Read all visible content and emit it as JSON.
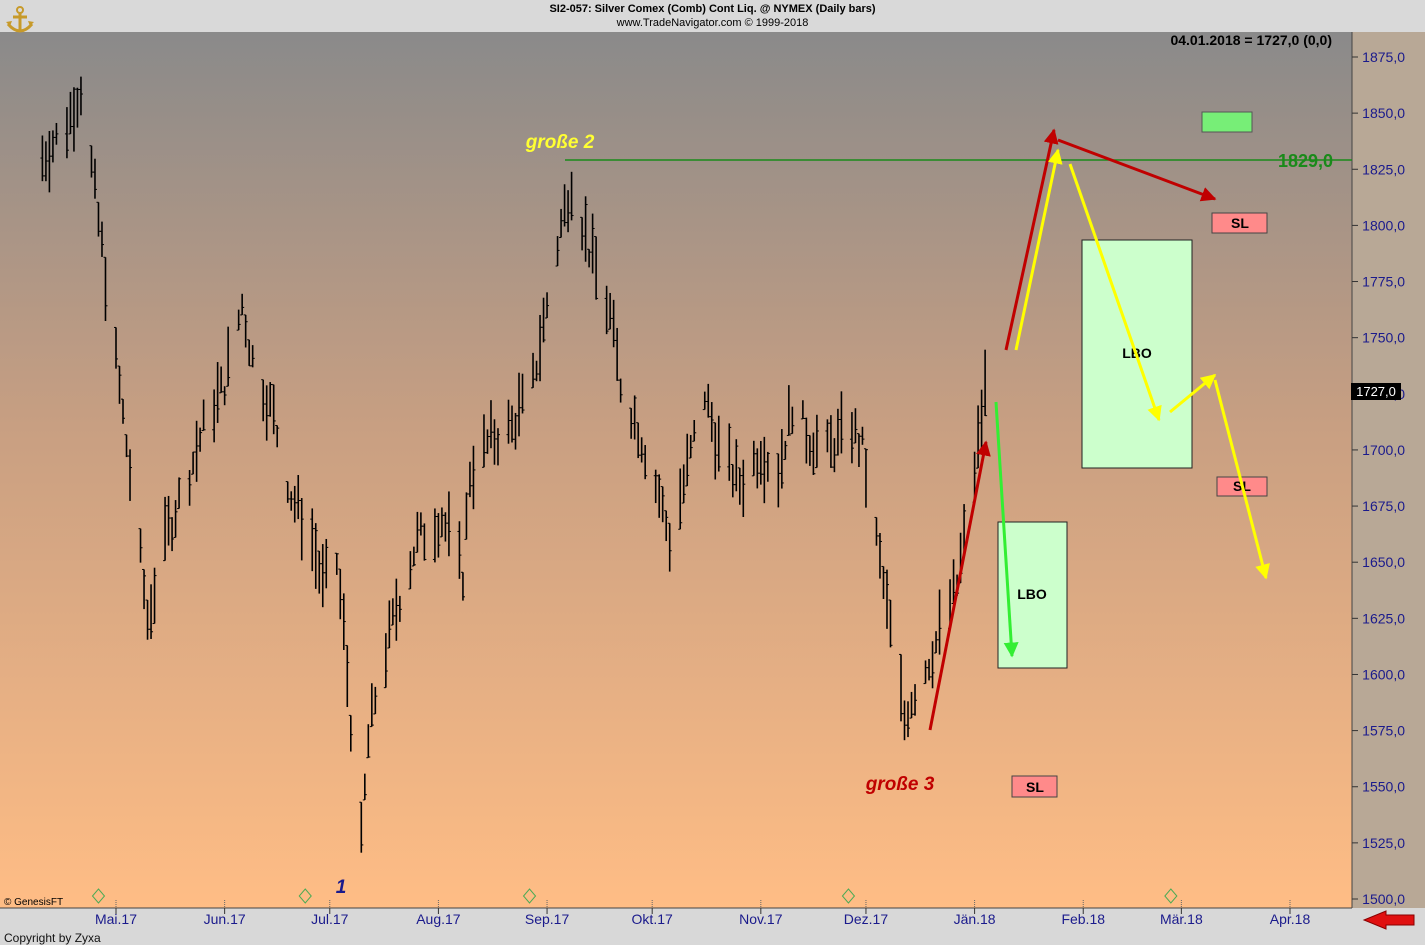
{
  "header": {
    "title": "SI2-057:  Silver Comex (Comb) Cont Liq. @ NYMEX  (Daily bars)",
    "subtitle": "www.TradeNavigator.com © 1999-2018"
  },
  "readout": "04.01.2018 = 1727,0 (0,0)",
  "price_badge": "1727,0",
  "footer": {
    "provider": "© GenesisFT",
    "copyright": "Copyright by Zyxa"
  },
  "colors": {
    "bg_top": "#8c8c8c",
    "bg_bottom": "#fdbe87",
    "bars": "#000000",
    "red_arrow": "#c00000",
    "yellow_arrow": "#ffff00",
    "green_arrow": "#33ee33",
    "level_line": "#1a8a1a",
    "lbo_box": "#ccffcc",
    "sl_box": "#ff8a8a",
    "axis_text": "#1a1a8c"
  },
  "chart_data": {
    "type": "ohlc",
    "title": "SI2-057:  Silver Comex (Comb) Cont Liq. @ NYMEX  (Daily bars)",
    "xlabel": "",
    "ylabel": "",
    "ylim": [
      1500,
      1875
    ],
    "yticks": [
      "1875,0",
      "1850,0",
      "1825,0",
      "1800,0",
      "1775,0",
      "1750,0",
      "1725,0",
      "1700,0",
      "1675,0",
      "1650,0",
      "1625,0",
      "1600,0",
      "1575,0",
      "1550,0",
      "1525,0",
      "1500,0"
    ],
    "ytick_values": [
      1875,
      1850,
      1825,
      1800,
      1775,
      1750,
      1725,
      1700,
      1675,
      1650,
      1625,
      1600,
      1575,
      1550,
      1525,
      1500
    ],
    "xticks": [
      "Mai.17",
      "Jun.17",
      "Jul.17",
      "Aug.17",
      "Sep.17",
      "Okt.17",
      "Nov.17",
      "Dez.17",
      "Jän.18",
      "Feb.18",
      "Mär.18",
      "Apr.18"
    ],
    "price_path": [
      [
        "2017-04-10",
        1830
      ],
      [
        "2017-04-17",
        1845
      ],
      [
        "2017-04-21",
        1862
      ],
      [
        "2017-04-27",
        1790
      ],
      [
        "2017-05-05",
        1690
      ],
      [
        "2017-05-10",
        1625
      ],
      [
        "2017-05-16",
        1665
      ],
      [
        "2017-05-22",
        1690
      ],
      [
        "2017-05-26",
        1710
      ],
      [
        "2017-06-01",
        1730
      ],
      [
        "2017-06-06",
        1765
      ],
      [
        "2017-06-09",
        1740
      ],
      [
        "2017-06-15",
        1715
      ],
      [
        "2017-06-20",
        1680
      ],
      [
        "2017-06-26",
        1660
      ],
      [
        "2017-06-29",
        1640
      ],
      [
        "2017-07-03",
        1650
      ],
      [
        "2017-07-05",
        1620
      ],
      [
        "2017-07-07",
        1580
      ],
      [
        "2017-07-10",
        1525
      ],
      [
        "2017-07-12",
        1570
      ],
      [
        "2017-07-14",
        1590
      ],
      [
        "2017-07-20",
        1630
      ],
      [
        "2017-07-26",
        1660
      ],
      [
        "2017-08-02",
        1670
      ],
      [
        "2017-08-08",
        1645
      ],
      [
        "2017-08-10",
        1690
      ],
      [
        "2017-08-16",
        1705
      ],
      [
        "2017-08-22",
        1710
      ],
      [
        "2017-08-28",
        1730
      ],
      [
        "2017-09-01",
        1765
      ],
      [
        "2017-09-05",
        1800
      ],
      [
        "2017-09-08",
        1820
      ],
      [
        "2017-09-13",
        1790
      ],
      [
        "2017-09-19",
        1760
      ],
      [
        "2017-09-22",
        1730
      ],
      [
        "2017-09-27",
        1710
      ],
      [
        "2017-10-03",
        1680
      ],
      [
        "2017-10-06",
        1660
      ],
      [
        "2017-10-10",
        1685
      ],
      [
        "2017-10-16",
        1725
      ],
      [
        "2017-10-20",
        1700
      ],
      [
        "2017-10-26",
        1685
      ],
      [
        "2017-11-01",
        1700
      ],
      [
        "2017-11-06",
        1690
      ],
      [
        "2017-11-10",
        1720
      ],
      [
        "2017-11-15",
        1705
      ],
      [
        "2017-11-20",
        1700
      ],
      [
        "2017-11-27",
        1710
      ],
      [
        "2017-11-30",
        1700
      ],
      [
        "2017-12-04",
        1660
      ],
      [
        "2017-12-08",
        1620
      ],
      [
        "2017-12-12",
        1580
      ],
      [
        "2017-12-14",
        1590
      ],
      [
        "2017-12-20",
        1610
      ],
      [
        "2017-12-27",
        1640
      ],
      [
        "2018-01-01",
        1690
      ],
      [
        "2018-01-04",
        1727
      ]
    ],
    "level": {
      "value": 1829,
      "label": "1829,0"
    },
    "annotations": [
      {
        "text": "große 2",
        "color": "#ffff33"
      },
      {
        "text": "große 3",
        "color": "#c00000"
      },
      {
        "text": "1",
        "color": "#1a1a8c"
      },
      {
        "text": "LBO"
      },
      {
        "text": "LBO"
      },
      {
        "text": "SL"
      },
      {
        "text": "SL"
      },
      {
        "text": "SL"
      }
    ]
  }
}
